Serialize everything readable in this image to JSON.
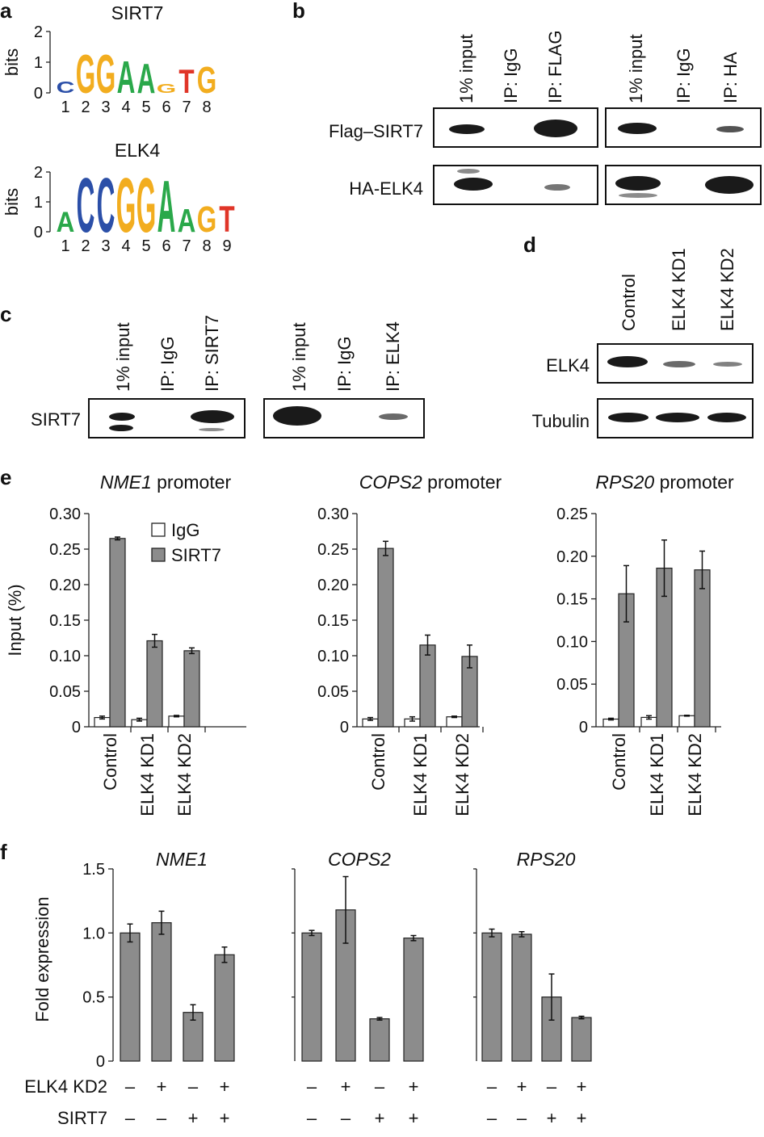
{
  "colors": {
    "bar_sirt7": "#8c8c8c",
    "bar_igg": "#ffffff",
    "bar_stroke": "#222222",
    "band": "#1a1a1a",
    "logo_A": "#2aa84a",
    "logo_C": "#2b4fa8",
    "logo_G": "#f2ad1f",
    "logo_T": "#e03528"
  },
  "panel_a": {
    "label": "a",
    "ylabel": "bits",
    "yticks": [
      "2",
      "1",
      "0"
    ],
    "logos": [
      {
        "name": "SIRT7",
        "positions": [
          "1",
          "2",
          "3",
          "4",
          "5",
          "6",
          "7",
          "8"
        ],
        "letters": [
          "C",
          "G",
          "G",
          "A",
          "A",
          "G",
          "T",
          "G"
        ],
        "heights": [
          0.4,
          1.3,
          1.3,
          1.1,
          1.0,
          0.3,
          0.8,
          0.9
        ]
      },
      {
        "name": "ELK4",
        "positions": [
          "1",
          "2",
          "3",
          "4",
          "5",
          "6",
          "7",
          "8",
          "9"
        ],
        "letters": [
          "A",
          "C",
          "C",
          "G",
          "G",
          "A",
          "A",
          "G",
          "T"
        ],
        "heights": [
          0.7,
          1.9,
          1.9,
          1.9,
          1.9,
          1.8,
          0.8,
          0.9,
          0.9
        ]
      }
    ]
  },
  "panel_b": {
    "label": "b",
    "blots": [
      {
        "lanes": [
          "1% input",
          "IP: IgG",
          "IP: FLAG"
        ]
      },
      {
        "lanes": [
          "1% input",
          "IP: IgG",
          "IP: HA"
        ]
      }
    ],
    "rows": [
      "Flag–SIRT7",
      "HA-ELK4"
    ]
  },
  "panel_c": {
    "label": "c",
    "row": "SIRT7",
    "blots": [
      {
        "lanes": [
          "1% input",
          "IP: IgG",
          "IP: SIRT7"
        ]
      },
      {
        "lanes": [
          "1% input",
          "IP: IgG",
          "IP: ELK4"
        ]
      }
    ]
  },
  "panel_d": {
    "label": "d",
    "lanes": [
      "Control",
      "ELK4 KD1",
      "ELK4 KD2"
    ],
    "rows": [
      "ELK4",
      "Tubulin"
    ]
  },
  "panel_e": {
    "label": "e"
  },
  "panel_f": {
    "label": "f",
    "conditions": [
      {
        "label": "ELK4 KD2",
        "signs": [
          "–",
          "+",
          "–",
          "+"
        ]
      },
      {
        "label": "SIRT7",
        "signs": [
          "–",
          "–",
          "+",
          "+"
        ]
      }
    ]
  },
  "chart_data": [
    {
      "panel": "e",
      "type": "bar",
      "title_gene": "NME1",
      "title_suffix": " promoter",
      "ylabel": "Input (%)",
      "ylim": [
        0,
        0.3
      ],
      "yticks": [
        "0",
        "0.05",
        "0.10",
        "0.15",
        "0.20",
        "0.25",
        "0.30"
      ],
      "categories": [
        "Control",
        "ELK4 KD1",
        "ELK4 KD2"
      ],
      "legend": "top-right",
      "series": [
        {
          "name": "IgG",
          "values": [
            0.013,
            0.01,
            0.015
          ],
          "errors": [
            0.002,
            0.002,
            0.001
          ]
        },
        {
          "name": "SIRT7",
          "values": [
            0.265,
            0.121,
            0.107
          ],
          "errors": [
            0.002,
            0.009,
            0.004
          ]
        }
      ]
    },
    {
      "panel": "e",
      "type": "bar",
      "title_gene": "COPS2",
      "title_suffix": " promoter",
      "ylim": [
        0,
        0.3
      ],
      "yticks": [
        "0",
        "0.05",
        "0.10",
        "0.15",
        "0.20",
        "0.25",
        "0.30"
      ],
      "categories": [
        "Control",
        "ELK4 KD1",
        "ELK4 KD2"
      ],
      "series": [
        {
          "name": "IgG",
          "values": [
            0.011,
            0.011,
            0.014
          ],
          "errors": [
            0.002,
            0.003,
            0.001
          ]
        },
        {
          "name": "SIRT7",
          "values": [
            0.251,
            0.115,
            0.099
          ],
          "errors": [
            0.01,
            0.014,
            0.016
          ]
        }
      ]
    },
    {
      "panel": "e",
      "type": "bar",
      "title_gene": "RPS20",
      "title_suffix": " promoter",
      "ylim": [
        0,
        0.25
      ],
      "yticks": [
        "0",
        "0.05",
        "0.10",
        "0.15",
        "0.20",
        "0.25"
      ],
      "categories": [
        "Control",
        "ELK4 KD1",
        "ELK4 KD2"
      ],
      "series": [
        {
          "name": "IgG",
          "values": [
            0.009,
            0.011,
            0.013
          ],
          "errors": [
            0.001,
            0.002,
            0.0005
          ]
        },
        {
          "name": "SIRT7",
          "values": [
            0.156,
            0.186,
            0.184
          ],
          "errors": [
            0.033,
            0.033,
            0.022
          ]
        }
      ]
    },
    {
      "panel": "f",
      "type": "bar",
      "title_gene": "NME1",
      "ylabel": "Fold expression",
      "ylim": [
        0,
        1.5
      ],
      "yticks": [
        "0",
        "0.5",
        "1.0",
        "1.5"
      ],
      "values": [
        1.0,
        1.08,
        0.38,
        0.83
      ],
      "errors": [
        0.07,
        0.09,
        0.06,
        0.06
      ]
    },
    {
      "panel": "f",
      "type": "bar",
      "title_gene": "COPS2",
      "ylim": [
        0,
        1.5
      ],
      "values": [
        1.0,
        1.18,
        0.33,
        0.96
      ],
      "errors": [
        0.02,
        0.26,
        0.01,
        0.02
      ]
    },
    {
      "panel": "f",
      "type": "bar",
      "title_gene": "RPS20",
      "ylim": [
        0,
        1.5
      ],
      "values": [
        1.0,
        0.99,
        0.5,
        0.34
      ],
      "errors": [
        0.03,
        0.02,
        0.18,
        0.01
      ]
    }
  ]
}
